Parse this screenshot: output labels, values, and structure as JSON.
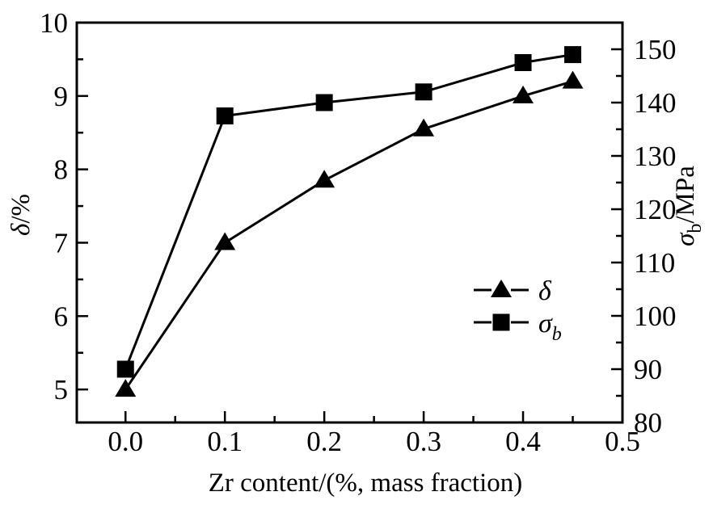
{
  "figure": {
    "background": "#ffffff",
    "line_color": "#000000",
    "text_color": "#000000"
  },
  "chart_data": {
    "type": "line",
    "title": "",
    "grid": false,
    "legend_position": "inside lower-right",
    "xlabel": "Zr content/(%, mass fraction)",
    "ylabel_left": {
      "symbol": "δ",
      "subscript": "",
      "suffix": "/%"
    },
    "ylabel_right": {
      "symbol": "σ",
      "subscript": "b",
      "suffix": "/MPa"
    },
    "x": [
      0.0,
      0.1,
      0.2,
      0.3,
      0.4,
      0.45
    ],
    "series": [
      {
        "name": "δ",
        "axis": "left",
        "marker": "triangle",
        "values": [
          5.0,
          7.0,
          7.85,
          8.55,
          9.0,
          9.2
        ]
      },
      {
        "name": "σb",
        "axis": "right",
        "marker": "square",
        "values": [
          90,
          137.5,
          140,
          142,
          147.5,
          149
        ]
      }
    ],
    "x_axis": {
      "min": -0.049,
      "max": 0.5,
      "major_ticks": [
        0.0,
        0.1,
        0.2,
        0.3,
        0.4,
        0.5
      ],
      "tick_labels": [
        "0.0",
        "0.1",
        "0.2",
        "0.3",
        "0.4",
        "0.5"
      ],
      "minor_ticks": [
        0.05,
        0.15,
        0.25,
        0.35,
        0.45
      ]
    },
    "left_axis": {
      "min": 4.55,
      "max": 10.0,
      "major_ticks": [
        5,
        6,
        7,
        8,
        9,
        10
      ],
      "tick_labels": [
        "5",
        "6",
        "7",
        "8",
        "9",
        "10"
      ],
      "minor_ticks": [
        5.5,
        6.5,
        7.5,
        8.5,
        9.5
      ]
    },
    "right_axis": {
      "min": 80,
      "max": 155,
      "major_ticks": [
        80,
        90,
        100,
        110,
        120,
        130,
        140,
        150
      ],
      "tick_labels": [
        "80",
        "90",
        "100",
        "110",
        "120",
        "130",
        "140",
        "150"
      ],
      "minor_ticks": [
        85,
        95,
        105,
        115,
        125,
        135,
        145
      ]
    },
    "legend": {
      "entries": [
        {
          "label": "δ",
          "subscript": "",
          "marker": "triangle"
        },
        {
          "label": "σ",
          "subscript": "b",
          "marker": "square"
        }
      ]
    }
  }
}
